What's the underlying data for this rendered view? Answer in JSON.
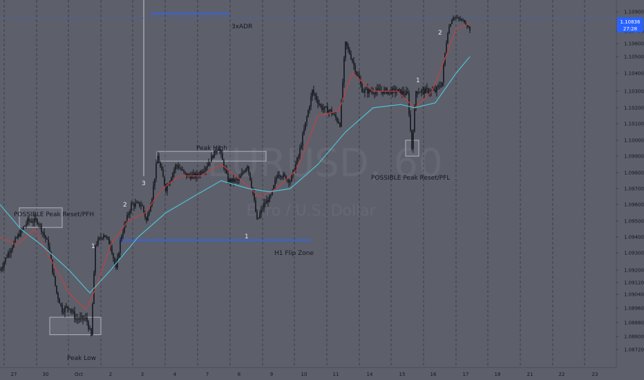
{
  "chart_data": {
    "type": "candlestick",
    "watermark": {
      "symbol": "EURUSD, 60",
      "name": "Euro / U.S. Dollar"
    },
    "y_axis": {
      "ticks": [
        "1.10900",
        "1.10700",
        "1.10600",
        "1.10500",
        "1.10400",
        "1.10300",
        "1.10200",
        "1.10100",
        "1.10000",
        "1.09900",
        "1.09800",
        "1.09700",
        "1.09600",
        "1.09500",
        "1.09400",
        "1.09300",
        "1.09200",
        "1.09120",
        "1.09040",
        "1.08960",
        "1.08880",
        "1.08800",
        "1.08720"
      ]
    },
    "x_axis": {
      "ticks": [
        "27",
        "30",
        "Oct",
        "2",
        "3",
        "4",
        "7",
        "8",
        "9",
        "10",
        "11",
        "14",
        "15",
        "16",
        "17",
        "18",
        "21",
        "22",
        "23"
      ]
    },
    "current_price": {
      "value": "1.10836",
      "countdown": "27:28",
      "color": "#2962ff"
    },
    "series": [
      {
        "name": "Close (approx.)",
        "color": "#0b0c10",
        "points": [
          [
            0,
            1.092
          ],
          [
            12,
            1.093
          ],
          [
            25,
            1.094
          ],
          [
            40,
            1.095
          ],
          [
            55,
            1.095
          ],
          [
            70,
            1.0935
          ],
          [
            82,
            1.0905
          ],
          [
            90,
            1.0895
          ],
          [
            100,
            1.0897
          ],
          [
            110,
            1.089
          ],
          [
            125,
            1.089
          ],
          [
            132,
            1.088
          ],
          [
            138,
            1.0935
          ],
          [
            150,
            1.0942
          ],
          [
            160,
            1.0935
          ],
          [
            168,
            1.092
          ],
          [
            175,
            1.094
          ],
          [
            190,
            1.096
          ],
          [
            205,
            1.096
          ],
          [
            212,
            1.095
          ],
          [
            220,
            1.0965
          ],
          [
            228,
            1.099
          ],
          [
            240,
            1.097
          ],
          [
            255,
            1.0985
          ],
          [
            270,
            1.0978
          ],
          [
            285,
            1.0978
          ],
          [
            300,
            1.0985
          ],
          [
            316,
            1.0996
          ],
          [
            330,
            1.0975
          ],
          [
            345,
            1.0975
          ],
          [
            358,
            1.0985
          ],
          [
            365,
            1.097
          ],
          [
            372,
            1.095
          ],
          [
            382,
            1.096
          ],
          [
            392,
            1.0965
          ],
          [
            402,
            1.098
          ],
          [
            420,
            1.0975
          ],
          [
            432,
            1.099
          ],
          [
            442,
            1.101
          ],
          [
            452,
            1.103
          ],
          [
            465,
            1.102
          ],
          [
            478,
            1.1018
          ],
          [
            492,
            1.101
          ],
          [
            500,
            1.106
          ],
          [
            512,
            1.1045
          ],
          [
            525,
            1.103
          ],
          [
            540,
            1.103
          ],
          [
            560,
            1.103
          ],
          [
            575,
            1.103
          ],
          [
            590,
            1.1028
          ],
          [
            596,
            1.0995
          ],
          [
            602,
            1.103
          ],
          [
            615,
            1.103
          ],
          [
            630,
            1.103
          ],
          [
            640,
            1.1035
          ],
          [
            648,
            1.107
          ],
          [
            655,
            1.1085
          ],
          [
            665,
            1.1082
          ],
          [
            672,
            1.108
          ],
          [
            680,
            1.1072
          ]
        ]
      },
      {
        "name": "MA fast",
        "color": "#c0413e",
        "points": [
          [
            0,
            1.094
          ],
          [
            25,
            1.0935
          ],
          [
            50,
            1.0945
          ],
          [
            75,
            1.0925
          ],
          [
            100,
            1.0905
          ],
          [
            125,
            1.0895
          ],
          [
            140,
            1.091
          ],
          [
            160,
            1.0935
          ],
          [
            185,
            1.095
          ],
          [
            210,
            1.0955
          ],
          [
            235,
            1.097
          ],
          [
            260,
            1.0978
          ],
          [
            290,
            1.0978
          ],
          [
            320,
            1.0985
          ],
          [
            350,
            1.0975
          ],
          [
            375,
            1.0965
          ],
          [
            400,
            1.097
          ],
          [
            430,
            1.0982
          ],
          [
            460,
            1.1015
          ],
          [
            490,
            1.1018
          ],
          [
            510,
            1.104
          ],
          [
            540,
            1.103
          ],
          [
            575,
            1.103
          ],
          [
            600,
            1.102
          ],
          [
            625,
            1.103
          ],
          [
            645,
            1.105
          ],
          [
            660,
            1.1072
          ],
          [
            680,
            1.1078
          ]
        ]
      },
      {
        "name": "MA slow",
        "color": "#4fc3d6",
        "points": [
          [
            0,
            1.096
          ],
          [
            30,
            1.0945
          ],
          [
            60,
            1.0935
          ],
          [
            100,
            1.092
          ],
          [
            130,
            1.0905
          ],
          [
            160,
            1.092
          ],
          [
            200,
            1.094
          ],
          [
            240,
            1.0955
          ],
          [
            280,
            1.0965
          ],
          [
            320,
            1.0975
          ],
          [
            360,
            1.097
          ],
          [
            390,
            1.0968
          ],
          [
            420,
            1.097
          ],
          [
            460,
            1.0985
          ],
          [
            500,
            1.1005
          ],
          [
            540,
            1.102
          ],
          [
            580,
            1.1022
          ],
          [
            600,
            1.102
          ],
          [
            630,
            1.1023
          ],
          [
            660,
            1.104
          ],
          [
            680,
            1.105
          ]
        ]
      }
    ],
    "levels": [
      {
        "name": "3xADR",
        "value": 1.1088,
        "from_x": 218,
        "to_x": 333,
        "color": "#2962ff"
      },
      {
        "name": "H1 Flip Zone",
        "value": 1.0938,
        "from_x": 172,
        "to_x": 450,
        "color": "#2962ff"
      },
      {
        "name": "current",
        "value": 1.10836,
        "color": "#2962ff"
      }
    ],
    "zones": [
      {
        "name": "POSSIBLE Peak Reset/PFH",
        "x1": 28,
        "x2": 90,
        "y_hi": 1.0958,
        "y_lo": 1.0946
      },
      {
        "name": "Peak Low",
        "x1": 72,
        "x2": 146,
        "y_hi": 1.0891,
        "y_lo": 1.0881
      },
      {
        "name": "Peak High",
        "x1": 227,
        "x2": 385,
        "y_hi": 1.0993,
        "y_lo": 1.0987
      },
      {
        "name": "POSSIBLE Peak Reset/PFL",
        "x1": 587,
        "x2": 606,
        "y_hi": 1.1,
        "y_lo": 1.099
      }
    ],
    "labels": {
      "adr": "3xADR",
      "pfh": "POSSIBLE Peak Reset/PFH",
      "peak_low": "Peak Low",
      "peak_high": "Peak High",
      "h1": "H1 Flip Zone",
      "pfl": "POSSIBLE Peak Reset/PFL"
    },
    "wave_numbers": [
      "1",
      "2",
      "3",
      "1",
      "1",
      "2"
    ]
  }
}
